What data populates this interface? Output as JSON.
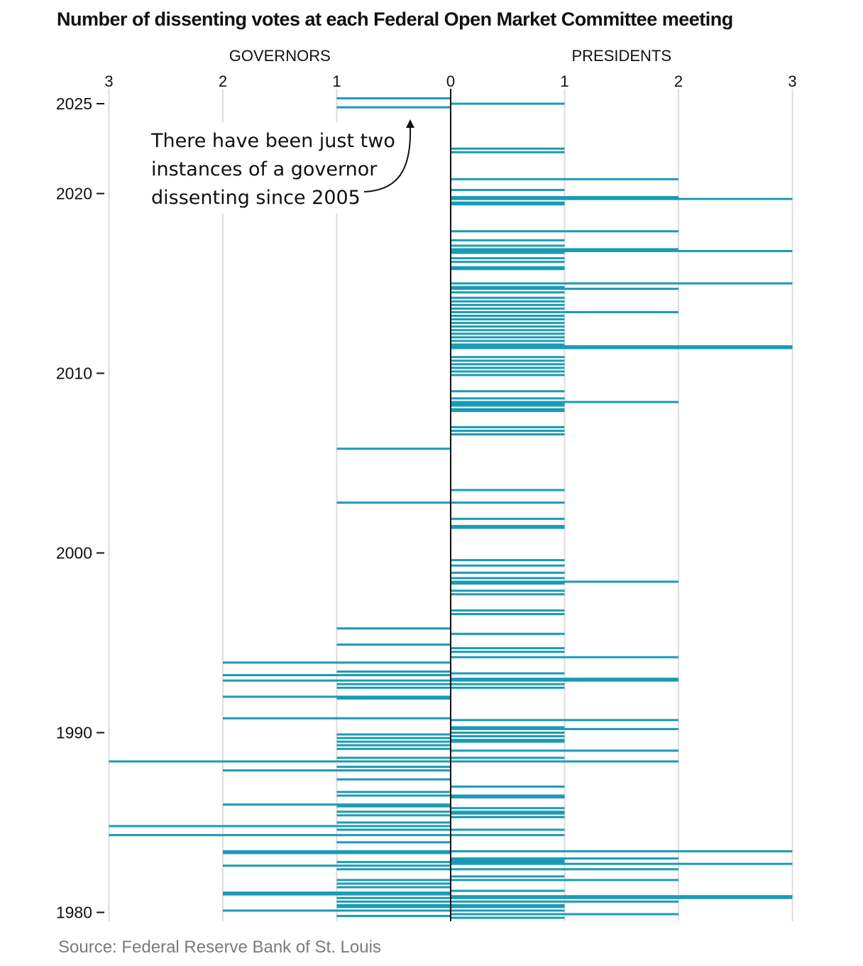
{
  "chart_data": {
    "type": "bar",
    "orientation": "horizontal-diverging",
    "title": "Number of dissenting votes at each Federal Open Market Committee meeting",
    "left_label": "GOVERNORS",
    "right_label": "PRESIDENTS",
    "x_ticks": [
      "3",
      "2",
      "1",
      "0",
      "1",
      "2",
      "3"
    ],
    "y_ticks": [
      "2025",
      "2020",
      "2010",
      "2000",
      "1990",
      "1980"
    ],
    "x_range": [
      -3,
      3
    ],
    "y_range_years": [
      1979.8,
      2025.5
    ],
    "grid": true,
    "annotation": "There have been just two instances of a governor dissenting since 2005",
    "annotation_lines": [
      "There have been just two",
      "instances of a governor",
      "dissenting since 2005"
    ],
    "source": "Source: Federal Reserve Bank of St. Louis",
    "bar_color": "#1a9bb5",
    "series": [
      {
        "name": "GOVERNORS",
        "points": [
          [
            2025.3,
            1
          ],
          [
            2024.8,
            1
          ],
          [
            2005.8,
            1
          ],
          [
            2002.8,
            1
          ],
          [
            1995.8,
            1
          ],
          [
            1994.9,
            1
          ],
          [
            1993.9,
            2
          ],
          [
            1993.4,
            1
          ],
          [
            1993.2,
            2
          ],
          [
            1992.9,
            2
          ],
          [
            1992.7,
            1
          ],
          [
            1992.5,
            1
          ],
          [
            1992.0,
            2
          ],
          [
            1991.9,
            1
          ],
          [
            1990.8,
            2
          ],
          [
            1989.9,
            1
          ],
          [
            1989.7,
            1
          ],
          [
            1989.5,
            1
          ],
          [
            1989.3,
            1
          ],
          [
            1989.1,
            1
          ],
          [
            1988.6,
            1
          ],
          [
            1988.4,
            3
          ],
          [
            1988.1,
            1
          ],
          [
            1987.9,
            2
          ],
          [
            1987.4,
            1
          ],
          [
            1986.7,
            1
          ],
          [
            1986.5,
            1
          ],
          [
            1986.0,
            2
          ],
          [
            1985.9,
            1
          ],
          [
            1985.6,
            1
          ],
          [
            1985.4,
            1
          ],
          [
            1985.0,
            1
          ],
          [
            1984.8,
            3
          ],
          [
            1984.6,
            1
          ],
          [
            1984.3,
            3
          ],
          [
            1983.9,
            1
          ],
          [
            1983.4,
            2
          ],
          [
            1983.3,
            2
          ],
          [
            1982.8,
            1
          ],
          [
            1982.6,
            2
          ],
          [
            1982.4,
            1
          ],
          [
            1981.8,
            1
          ],
          [
            1981.6,
            1
          ],
          [
            1981.4,
            1
          ],
          [
            1981.1,
            2
          ],
          [
            1981.0,
            2
          ],
          [
            1980.8,
            1
          ],
          [
            1980.6,
            1
          ],
          [
            1980.4,
            1
          ],
          [
            1980.3,
            1
          ],
          [
            1980.1,
            2
          ],
          [
            1979.8,
            1
          ]
        ]
      },
      {
        "name": "PRESIDENTS",
        "points": [
          [
            2025.0,
            1
          ],
          [
            2022.5,
            1
          ],
          [
            2022.3,
            1
          ],
          [
            2020.8,
            2
          ],
          [
            2020.2,
            1
          ],
          [
            2019.8,
            2
          ],
          [
            2019.7,
            2
          ],
          [
            2019.7,
            3
          ],
          [
            2019.5,
            1
          ],
          [
            2019.4,
            1
          ],
          [
            2017.9,
            2
          ],
          [
            2017.4,
            1
          ],
          [
            2017.1,
            1
          ],
          [
            2016.9,
            2
          ],
          [
            2016.8,
            3
          ],
          [
            2016.7,
            1
          ],
          [
            2016.4,
            1
          ],
          [
            2016.2,
            1
          ],
          [
            2015.9,
            1
          ],
          [
            2015.8,
            1
          ],
          [
            2015.0,
            3
          ],
          [
            2014.8,
            1
          ],
          [
            2014.7,
            2
          ],
          [
            2014.5,
            1
          ],
          [
            2014.2,
            1
          ],
          [
            2014.0,
            1
          ],
          [
            2013.8,
            1
          ],
          [
            2013.6,
            1
          ],
          [
            2013.4,
            2
          ],
          [
            2013.2,
            1
          ],
          [
            2013.0,
            1
          ],
          [
            2012.8,
            1
          ],
          [
            2012.6,
            1
          ],
          [
            2012.4,
            1
          ],
          [
            2012.2,
            1
          ],
          [
            2012.0,
            1
          ],
          [
            2011.8,
            1
          ],
          [
            2011.6,
            1
          ],
          [
            2011.5,
            3
          ],
          [
            2011.4,
            3
          ],
          [
            2010.9,
            1
          ],
          [
            2010.7,
            1
          ],
          [
            2010.5,
            1
          ],
          [
            2010.3,
            1
          ],
          [
            2010.1,
            1
          ],
          [
            2009.9,
            1
          ],
          [
            2009.0,
            1
          ],
          [
            2008.6,
            1
          ],
          [
            2008.4,
            2
          ],
          [
            2008.3,
            1
          ],
          [
            2008.2,
            1
          ],
          [
            2008.0,
            1
          ],
          [
            2007.9,
            1
          ],
          [
            2007.0,
            1
          ],
          [
            2006.8,
            1
          ],
          [
            2006.6,
            1
          ],
          [
            2003.5,
            1
          ],
          [
            2002.8,
            1
          ],
          [
            2001.9,
            1
          ],
          [
            2001.5,
            1
          ],
          [
            2001.4,
            1
          ],
          [
            1999.6,
            1
          ],
          [
            1999.3,
            1
          ],
          [
            1998.9,
            1
          ],
          [
            1998.6,
            1
          ],
          [
            1998.4,
            2
          ],
          [
            1998.3,
            1
          ],
          [
            1997.9,
            1
          ],
          [
            1997.7,
            1
          ],
          [
            1996.8,
            1
          ],
          [
            1996.6,
            1
          ],
          [
            1995.5,
            1
          ],
          [
            1994.7,
            1
          ],
          [
            1994.5,
            1
          ],
          [
            1994.2,
            2
          ],
          [
            1993.3,
            1
          ],
          [
            1993.0,
            2
          ],
          [
            1992.9,
            2
          ],
          [
            1992.7,
            1
          ],
          [
            1992.5,
            1
          ],
          [
            1990.7,
            2
          ],
          [
            1990.3,
            1
          ],
          [
            1990.2,
            2
          ],
          [
            1990.0,
            1
          ],
          [
            1989.8,
            1
          ],
          [
            1989.6,
            1
          ],
          [
            1989.5,
            1
          ],
          [
            1989.0,
            2
          ],
          [
            1988.6,
            1
          ],
          [
            1988.4,
            2
          ],
          [
            1987.0,
            1
          ],
          [
            1986.5,
            1
          ],
          [
            1986.4,
            1
          ],
          [
            1985.8,
            1
          ],
          [
            1985.6,
            1
          ],
          [
            1985.5,
            1
          ],
          [
            1985.3,
            1
          ],
          [
            1984.6,
            1
          ],
          [
            1984.3,
            1
          ],
          [
            1983.4,
            3
          ],
          [
            1983.0,
            2
          ],
          [
            1982.9,
            1
          ],
          [
            1982.8,
            1
          ],
          [
            1982.7,
            3
          ],
          [
            1982.4,
            2
          ],
          [
            1982.0,
            1
          ],
          [
            1981.8,
            2
          ],
          [
            1981.2,
            1
          ],
          [
            1980.9,
            3
          ],
          [
            1980.8,
            3
          ],
          [
            1980.6,
            2
          ],
          [
            1980.4,
            1
          ],
          [
            1980.3,
            1
          ],
          [
            1980.1,
            1
          ],
          [
            1979.9,
            2
          ],
          [
            1979.7,
            1
          ]
        ]
      }
    ]
  }
}
